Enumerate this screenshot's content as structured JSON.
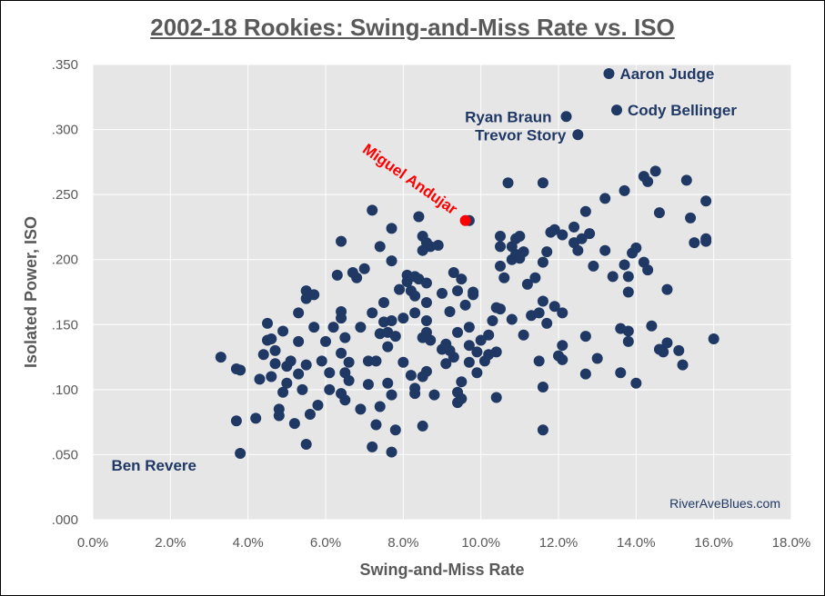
{
  "chart_data": {
    "type": "scatter",
    "title": "2002-18 Rookies: Swing-and-Miss Rate vs. ISO",
    "xlabel": "Swing-and-Miss Rate",
    "ylabel": "Isolated Power, ISO",
    "xlim": [
      0.0,
      0.18
    ],
    "ylim": [
      0.0,
      0.35
    ],
    "x_ticks": [
      "0.0%",
      "2.0%",
      "4.0%",
      "6.0%",
      "8.0%",
      "10.0%",
      "12.0%",
      "14.0%",
      "16.0%",
      "18.0%"
    ],
    "y_ticks": [
      ".000",
      ".050",
      ".100",
      ".150",
      ".200",
      ".250",
      ".300",
      ".350"
    ],
    "grid": true,
    "colors": {
      "points": "#1f3864",
      "highlight": "#ff0000",
      "plot_bg": "#e6e6e6",
      "grid": "#ffffff"
    },
    "watermark": "RiverAveBlues.com",
    "highlight": {
      "name": "Miguel Andujar",
      "x": 0.096,
      "y": 0.23
    },
    "labeled_points": [
      {
        "name": "Aaron Judge",
        "x": 0.133,
        "y": 0.343
      },
      {
        "name": "Cody Bellinger",
        "x": 0.135,
        "y": 0.315
      },
      {
        "name": "Ryan Braun",
        "x": 0.122,
        "y": 0.31
      },
      {
        "name": "Trevor Story",
        "x": 0.125,
        "y": 0.296
      },
      {
        "name": "Ben Revere",
        "x": 0.03,
        "y": 0.042
      }
    ],
    "points": [
      [
        0.033,
        0.125
      ],
      [
        0.037,
        0.116
      ],
      [
        0.038,
        0.115
      ],
      [
        0.037,
        0.076
      ],
      [
        0.038,
        0.051
      ],
      [
        0.042,
        0.078
      ],
      [
        0.043,
        0.108
      ],
      [
        0.044,
        0.127
      ],
      [
        0.045,
        0.151
      ],
      [
        0.045,
        0.138
      ],
      [
        0.046,
        0.139
      ],
      [
        0.046,
        0.11
      ],
      [
        0.047,
        0.13
      ],
      [
        0.047,
        0.12
      ],
      [
        0.048,
        0.085
      ],
      [
        0.048,
        0.08
      ],
      [
        0.049,
        0.098
      ],
      [
        0.049,
        0.145
      ],
      [
        0.05,
        0.105
      ],
      [
        0.05,
        0.118
      ],
      [
        0.051,
        0.122
      ],
      [
        0.052,
        0.074
      ],
      [
        0.053,
        0.137
      ],
      [
        0.053,
        0.112
      ],
      [
        0.053,
        0.159
      ],
      [
        0.054,
        0.1
      ],
      [
        0.055,
        0.119
      ],
      [
        0.055,
        0.176
      ],
      [
        0.055,
        0.17
      ],
      [
        0.055,
        0.058
      ],
      [
        0.056,
        0.081
      ],
      [
        0.057,
        0.148
      ],
      [
        0.057,
        0.173
      ],
      [
        0.058,
        0.088
      ],
      [
        0.059,
        0.122
      ],
      [
        0.06,
        0.137
      ],
      [
        0.061,
        0.1
      ],
      [
        0.061,
        0.113
      ],
      [
        0.062,
        0.148
      ],
      [
        0.063,
        0.188
      ],
      [
        0.064,
        0.214
      ],
      [
        0.064,
        0.16
      ],
      [
        0.064,
        0.155
      ],
      [
        0.064,
        0.128
      ],
      [
        0.064,
        0.097
      ],
      [
        0.065,
        0.092
      ],
      [
        0.065,
        0.113
      ],
      [
        0.065,
        0.14
      ],
      [
        0.066,
        0.121
      ],
      [
        0.066,
        0.107
      ],
      [
        0.067,
        0.19
      ],
      [
        0.068,
        0.186
      ],
      [
        0.069,
        0.085
      ],
      [
        0.069,
        0.148
      ],
      [
        0.07,
        0.193
      ],
      [
        0.071,
        0.122
      ],
      [
        0.071,
        0.104
      ],
      [
        0.072,
        0.238
      ],
      [
        0.072,
        0.159
      ],
      [
        0.072,
        0.056
      ],
      [
        0.073,
        0.073
      ],
      [
        0.073,
        0.122
      ],
      [
        0.074,
        0.087
      ],
      [
        0.074,
        0.143
      ],
      [
        0.074,
        0.21
      ],
      [
        0.075,
        0.152
      ],
      [
        0.075,
        0.167
      ],
      [
        0.076,
        0.133
      ],
      [
        0.076,
        0.144
      ],
      [
        0.076,
        0.105
      ],
      [
        0.077,
        0.224
      ],
      [
        0.077,
        0.199
      ],
      [
        0.077,
        0.153
      ],
      [
        0.077,
        0.096
      ],
      [
        0.077,
        0.052
      ],
      [
        0.078,
        0.069
      ],
      [
        0.078,
        0.141
      ],
      [
        0.079,
        0.177
      ],
      [
        0.08,
        0.155
      ],
      [
        0.08,
        0.121
      ],
      [
        0.081,
        0.188
      ],
      [
        0.081,
        0.183
      ],
      [
        0.082,
        0.176
      ],
      [
        0.082,
        0.111
      ],
      [
        0.083,
        0.187
      ],
      [
        0.083,
        0.172
      ],
      [
        0.083,
        0.159
      ],
      [
        0.083,
        0.101
      ],
      [
        0.083,
        0.097
      ],
      [
        0.084,
        0.233
      ],
      [
        0.084,
        0.185
      ],
      [
        0.085,
        0.218
      ],
      [
        0.085,
        0.207
      ],
      [
        0.085,
        0.14
      ],
      [
        0.085,
        0.11
      ],
      [
        0.085,
        0.072
      ],
      [
        0.086,
        0.213
      ],
      [
        0.086,
        0.182
      ],
      [
        0.086,
        0.167
      ],
      [
        0.086,
        0.153
      ],
      [
        0.086,
        0.144
      ],
      [
        0.086,
        0.114
      ],
      [
        0.087,
        0.21
      ],
      [
        0.087,
        0.138
      ],
      [
        0.088,
        0.096
      ],
      [
        0.089,
        0.211
      ],
      [
        0.09,
        0.174
      ],
      [
        0.09,
        0.131
      ],
      [
        0.091,
        0.12
      ],
      [
        0.091,
        0.135
      ],
      [
        0.092,
        0.16
      ],
      [
        0.092,
        0.13
      ],
      [
        0.093,
        0.19
      ],
      [
        0.093,
        0.125
      ],
      [
        0.094,
        0.176
      ],
      [
        0.094,
        0.144
      ],
      [
        0.094,
        0.098
      ],
      [
        0.094,
        0.09
      ],
      [
        0.095,
        0.185
      ],
      [
        0.095,
        0.106
      ],
      [
        0.095,
        0.093
      ],
      [
        0.096,
        0.165
      ],
      [
        0.097,
        0.23
      ],
      [
        0.097,
        0.148
      ],
      [
        0.097,
        0.134
      ],
      [
        0.097,
        0.121
      ],
      [
        0.098,
        0.175
      ],
      [
        0.098,
        0.173
      ],
      [
        0.099,
        0.113
      ],
      [
        0.099,
        0.129
      ],
      [
        0.1,
        0.138
      ],
      [
        0.101,
        0.122
      ],
      [
        0.102,
        0.142
      ],
      [
        0.102,
        0.127
      ],
      [
        0.103,
        0.153
      ],
      [
        0.104,
        0.129
      ],
      [
        0.104,
        0.094
      ],
      [
        0.104,
        0.163
      ],
      [
        0.105,
        0.218
      ],
      [
        0.105,
        0.21
      ],
      [
        0.105,
        0.195
      ],
      [
        0.105,
        0.162
      ],
      [
        0.106,
        0.186
      ],
      [
        0.107,
        0.259
      ],
      [
        0.108,
        0.2
      ],
      [
        0.108,
        0.21
      ],
      [
        0.108,
        0.154
      ],
      [
        0.109,
        0.216
      ],
      [
        0.109,
        0.204
      ],
      [
        0.11,
        0.201
      ],
      [
        0.11,
        0.218
      ],
      [
        0.111,
        0.206
      ],
      [
        0.111,
        0.142
      ],
      [
        0.112,
        0.181
      ],
      [
        0.113,
        0.157
      ],
      [
        0.114,
        0.186
      ],
      [
        0.115,
        0.122
      ],
      [
        0.115,
        0.159
      ],
      [
        0.116,
        0.259
      ],
      [
        0.116,
        0.198
      ],
      [
        0.116,
        0.168
      ],
      [
        0.116,
        0.102
      ],
      [
        0.116,
        0.069
      ],
      [
        0.117,
        0.206
      ],
      [
        0.117,
        0.151
      ],
      [
        0.118,
        0.221
      ],
      [
        0.119,
        0.223
      ],
      [
        0.119,
        0.164
      ],
      [
        0.12,
        0.126
      ],
      [
        0.121,
        0.159
      ],
      [
        0.121,
        0.134
      ],
      [
        0.121,
        0.123
      ],
      [
        0.121,
        0.219
      ],
      [
        0.122,
        0.31
      ],
      [
        0.124,
        0.225
      ],
      [
        0.124,
        0.213
      ],
      [
        0.125,
        0.296
      ],
      [
        0.125,
        0.207
      ],
      [
        0.126,
        0.216
      ],
      [
        0.127,
        0.237
      ],
      [
        0.127,
        0.141
      ],
      [
        0.127,
        0.112
      ],
      [
        0.128,
        0.22
      ],
      [
        0.129,
        0.195
      ],
      [
        0.13,
        0.124
      ],
      [
        0.132,
        0.247
      ],
      [
        0.132,
        0.207
      ],
      [
        0.133,
        0.343
      ],
      [
        0.134,
        0.187
      ],
      [
        0.135,
        0.315
      ],
      [
        0.136,
        0.147
      ],
      [
        0.136,
        0.113
      ],
      [
        0.137,
        0.253
      ],
      [
        0.137,
        0.196
      ],
      [
        0.138,
        0.187
      ],
      [
        0.138,
        0.175
      ],
      [
        0.138,
        0.145
      ],
      [
        0.138,
        0.137
      ],
      [
        0.139,
        0.205
      ],
      [
        0.14,
        0.209
      ],
      [
        0.14,
        0.105
      ],
      [
        0.142,
        0.264
      ],
      [
        0.142,
        0.198
      ],
      [
        0.143,
        0.26
      ],
      [
        0.143,
        0.192
      ],
      [
        0.144,
        0.149
      ],
      [
        0.145,
        0.268
      ],
      [
        0.146,
        0.236
      ],
      [
        0.146,
        0.131
      ],
      [
        0.147,
        0.129
      ],
      [
        0.148,
        0.177
      ],
      [
        0.148,
        0.136
      ],
      [
        0.151,
        0.13
      ],
      [
        0.152,
        0.119
      ],
      [
        0.153,
        0.261
      ],
      [
        0.154,
        0.232
      ],
      [
        0.155,
        0.213
      ],
      [
        0.158,
        0.245
      ],
      [
        0.158,
        0.216
      ],
      [
        0.158,
        0.214
      ],
      [
        0.16,
        0.139
      ]
    ]
  }
}
